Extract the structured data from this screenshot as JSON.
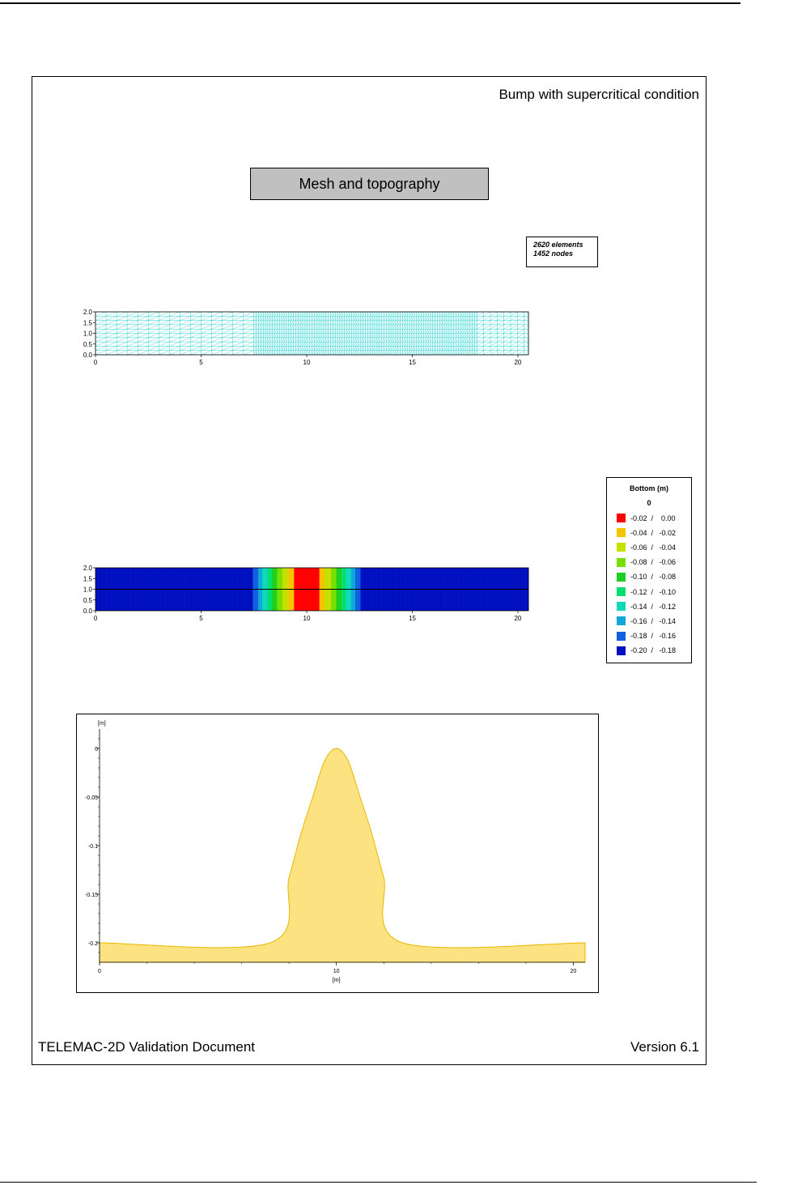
{
  "page": {
    "subtitle": "Bump with supercritical condition",
    "section_title": "Mesh and topography",
    "footer_left": "TELEMAC-2D Validation Document",
    "footer_right": "Version 6.1"
  },
  "mesh_info": {
    "elements": "2620 elements",
    "nodes": "1452 nodes"
  },
  "chart_data": [
    {
      "type": "mesh",
      "x_ticks": [
        "0",
        "5",
        "10",
        "15",
        "20"
      ],
      "y_ticks": [
        "0.0",
        "0.5",
        "1.0",
        "1.5",
        "2.0"
      ],
      "xlim": [
        0,
        20.5
      ],
      "ylim": [
        0,
        2.0
      ],
      "mesh_color": "#2fd3d3"
    },
    {
      "type": "heatmap",
      "x_ticks": [
        "0",
        "5",
        "10",
        "15",
        "20"
      ],
      "y_ticks": [
        "0.0",
        "0.5",
        "1.0",
        "1.5",
        "2.0"
      ],
      "xlim": [
        0,
        20.5
      ],
      "ylim": [
        0,
        2.0
      ],
      "section_line_y": 1.0,
      "legend": {
        "title": "Bottom (m)",
        "top_value": "0",
        "entries": [
          {
            "label": "-0.02  /    0.00",
            "color": "#ff0000"
          },
          {
            "label": "-0.04  /   -0.02",
            "color": "#f5c400"
          },
          {
            "label": "-0.06  /   -0.04",
            "color": "#c8e000"
          },
          {
            "label": "-0.08  /   -0.06",
            "color": "#78e000"
          },
          {
            "label": "-0.10  /   -0.08",
            "color": "#20d020"
          },
          {
            "label": "-0.12  /   -0.10",
            "color": "#00e070"
          },
          {
            "label": "-0.14  /   -0.12",
            "color": "#10d8b8"
          },
          {
            "label": "-0.16  /   -0.14",
            "color": "#10a8d8"
          },
          {
            "label": "-0.18  /   -0.16",
            "color": "#1060e0"
          },
          {
            "label": "-0.20  /   -0.18",
            "color": "#0010c0"
          }
        ]
      }
    },
    {
      "type": "area",
      "ylabel": "[m]",
      "xlabel": "[m]",
      "x_ticks": [
        "0",
        "10",
        "20"
      ],
      "y_ticks": [
        "0",
        "-0.05",
        "-0.1",
        "-0.15",
        "-0.2"
      ],
      "xlim": [
        0,
        20.5
      ],
      "ylim": [
        -0.22,
        0.02
      ],
      "fill_color": "#fde282",
      "line_color": "#e8b800",
      "x": [
        0,
        7.2,
        8,
        8.5,
        9,
        9.5,
        10,
        10.5,
        11,
        11.5,
        12,
        12.8,
        20.5
      ],
      "y": [
        -0.2,
        -0.2,
        -0.133,
        -0.088,
        -0.05,
        -0.013,
        0.0,
        -0.013,
        -0.05,
        -0.088,
        -0.133,
        -0.2,
        -0.2
      ]
    }
  ]
}
